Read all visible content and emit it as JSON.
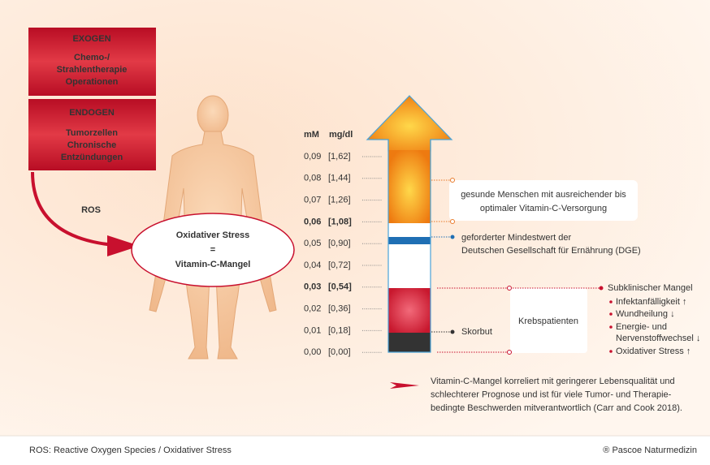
{
  "left": {
    "exogen": {
      "title": "EXOGEN",
      "lines": [
        "Chemo-/",
        "Strahlentherapie",
        "Operationen"
      ]
    },
    "endogen": {
      "title": "ENDOGEN",
      "lines": [
        "Tumorzellen",
        "Chronische",
        "Entzündungen"
      ]
    },
    "ros": "ROS",
    "ellipse": [
      "Oxidativer Stress",
      "=",
      "Vitamin-C-Mangel"
    ]
  },
  "scale": {
    "headers": [
      "mM",
      "mg/dl"
    ],
    "rows": [
      {
        "mm": "0,09",
        "mgdl": "[1,62]"
      },
      {
        "mm": "0,08",
        "mgdl": "[1,44]"
      },
      {
        "mm": "0,07",
        "mgdl": "[1,26]"
      },
      {
        "mm": "0,06",
        "mgdl": "[1,08]",
        "emphasis": true
      },
      {
        "mm": "0,05",
        "mgdl": "[0,90]"
      },
      {
        "mm": "0,04",
        "mgdl": "[0,72]"
      },
      {
        "mm": "0,03",
        "mgdl": "[0,54]",
        "emphasis": true
      },
      {
        "mm": "0,02",
        "mgdl": "[0,36]"
      },
      {
        "mm": "0,01",
        "mgdl": "[0,18]"
      },
      {
        "mm": "0,00",
        "mgdl": "[0,00]"
      }
    ]
  },
  "callouts": {
    "healthy": [
      "gesunde Menschen mit ausreichender bis",
      "optimaler Vitamin-C-Versorgung"
    ],
    "dge": [
      "geforderter Mindestwert der",
      "Deutschen Gesellschaft für Ernährung (DGE)"
    ],
    "cancer": "Krebspatienten",
    "scurvy": "Skorbut",
    "subclinical": {
      "title": "Subklinischer Mangel",
      "items": [
        "Infektanfälligkeit ↑",
        "Wundheilung ↓",
        "Energie- und",
        "Nervenstoffwechsel ↓",
        "Oxidativer Stress ↑"
      ]
    },
    "note": [
      "Vitamin-C-Mangel korreliert mit geringerer Lebensqualität und",
      "schlechterer Prognose und ist für viele Tumor- und Therapie-",
      "bedingte Beschwerden mitverantwortlich (Carr and Cook 2018)."
    ]
  },
  "footer": {
    "left": "ROS: Reactive Oxygen Species / Oxidativer Stress",
    "right": "® Pascoe Naturmedizin"
  }
}
